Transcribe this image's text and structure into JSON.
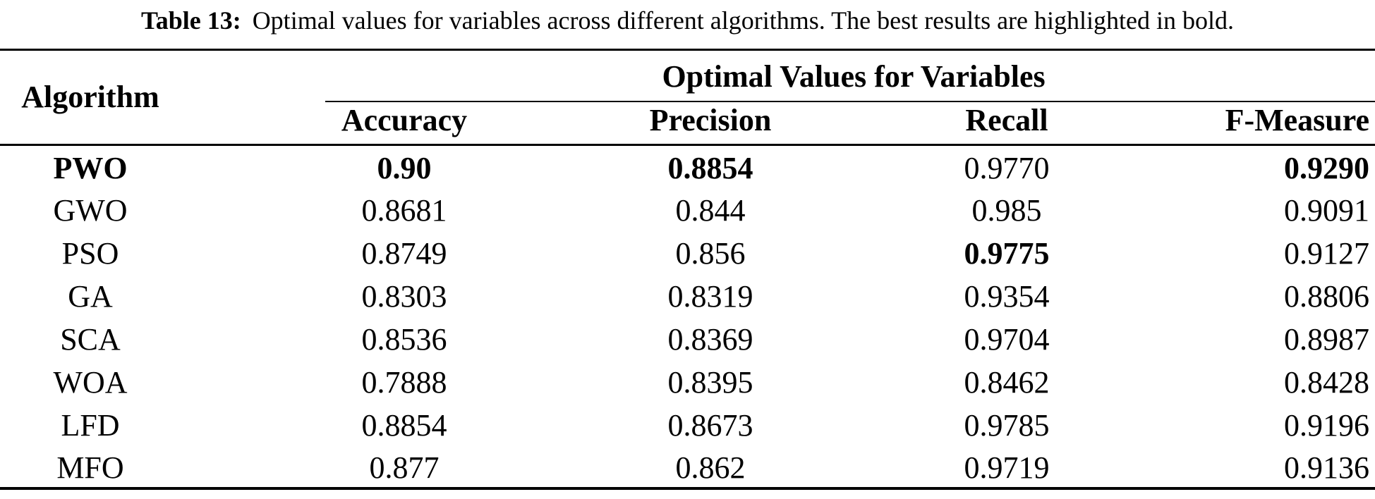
{
  "colors": {
    "text": "#000000",
    "background": "#ffffff",
    "rules": "#000000"
  },
  "caption": {
    "label": "Table 13:",
    "text": "Optimal values for variables across different algorithms. The best results are highlighted in bold."
  },
  "table": {
    "corner_header": "Algorithm",
    "spanner_header": "Optimal Values for Variables",
    "columns": [
      "Accuracy",
      "Precision",
      "Recall",
      "F-Measure"
    ],
    "rows": [
      {
        "algorithm": "PWO",
        "accuracy": "0.90",
        "precision": "0.8854",
        "recall": "0.9770",
        "f_measure": "0.9290"
      },
      {
        "algorithm": "GWO",
        "accuracy": "0.8681",
        "precision": "0.844",
        "recall": "0.985",
        "f_measure": "0.9091"
      },
      {
        "algorithm": "PSO",
        "accuracy": "0.8749",
        "precision": "0.856",
        "recall": "0.9775",
        "f_measure": "0.9127"
      },
      {
        "algorithm": "GA",
        "accuracy": "0.8303",
        "precision": "0.8319",
        "recall": "0.9354",
        "f_measure": "0.8806"
      },
      {
        "algorithm": "SCA",
        "accuracy": "0.8536",
        "precision": "0.8369",
        "recall": "0.9704",
        "f_measure": "0.8987"
      },
      {
        "algorithm": "WOA",
        "accuracy": "0.7888",
        "precision": "0.8395",
        "recall": "0.8462",
        "f_measure": "0.8428"
      },
      {
        "algorithm": "LFD",
        "accuracy": "0.8854",
        "precision": "0.8673",
        "recall": "0.9785",
        "f_measure": "0.9196"
      },
      {
        "algorithm": "MFO",
        "accuracy": "0.877",
        "precision": "0.862",
        "recall": "0.9719",
        "f_measure": "0.9136"
      }
    ]
  }
}
